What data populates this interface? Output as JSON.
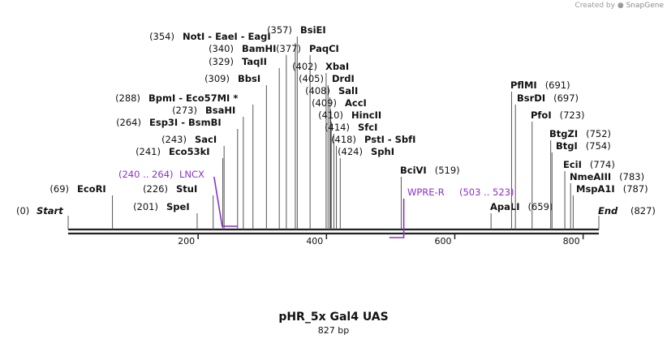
{
  "credit": {
    "prefix": "Created by",
    "brand": "SnapGene"
  },
  "map_title": "pHR_5x Gal4 UAS",
  "map_length": "827 bp",
  "sequence_length": 827,
  "axis_ticks": [
    200,
    400,
    600,
    800
  ],
  "ends": [
    {
      "name": "Start",
      "position_label": "(0)",
      "position": 0
    },
    {
      "name": "End",
      "position_label": "(827)",
      "position": 827
    }
  ],
  "sites": [
    {
      "name": "EcoRI",
      "position_label": "(69)",
      "position": 69
    },
    {
      "name": "SpeI",
      "position_label": "(201)",
      "position": 201
    },
    {
      "name": "StuI",
      "position_label": "(226)",
      "position": 226
    },
    {
      "name": "Eco53kI",
      "position_label": "(241)",
      "position": 241
    },
    {
      "name": "SacI",
      "position_label": "(243)",
      "position": 243
    },
    {
      "name": "Esp3I - BsmBI",
      "position_label": "(264)",
      "position": 264
    },
    {
      "name": "BsaHI",
      "position_label": "(273)",
      "position": 273
    },
    {
      "name": "BpmI - Eco57MI *",
      "position_label": "(288)",
      "position": 288
    },
    {
      "name": "BbsI",
      "position_label": "(309)",
      "position": 309
    },
    {
      "name": "TaqII",
      "position_label": "(329)",
      "position": 329
    },
    {
      "name": "BamHI",
      "position_label": "(340)",
      "position": 340
    },
    {
      "name": "NotI - EaeI - EagI",
      "position_label": "(354)",
      "position": 354
    },
    {
      "name": "BsiEI",
      "position_label": "(357)",
      "position": 357
    },
    {
      "name": "PaqCI",
      "position_label": "(377)",
      "position": 377
    },
    {
      "name": "XbaI",
      "position_label": "(402)",
      "position": 402
    },
    {
      "name": "DrdI",
      "position_label": "(405)",
      "position": 405
    },
    {
      "name": "SalI",
      "position_label": "(408)",
      "position": 408
    },
    {
      "name": "AccI",
      "position_label": "(409)",
      "position": 409
    },
    {
      "name": "HincII",
      "position_label": "(410)",
      "position": 410
    },
    {
      "name": "SfcI",
      "position_label": "(414)",
      "position": 414
    },
    {
      "name": "PstI - SbfI",
      "position_label": "(418)",
      "position": 418
    },
    {
      "name": "SphI",
      "position_label": "(424)",
      "position": 424
    },
    {
      "name": "BciVI",
      "position_label": "(519)",
      "position": 519
    },
    {
      "name": "ApaLI",
      "position_label": "(659)",
      "position": 659
    },
    {
      "name": "PflMI",
      "position_label": "(691)",
      "position": 691
    },
    {
      "name": "BsrDI",
      "position_label": "(697)",
      "position": 697
    },
    {
      "name": "PfoI",
      "position_label": "(723)",
      "position": 723
    },
    {
      "name": "BtgZI",
      "position_label": "(752)",
      "position": 752
    },
    {
      "name": "BtgI",
      "position_label": "(754)",
      "position": 754
    },
    {
      "name": "EciI",
      "position_label": "(774)",
      "position": 774
    },
    {
      "name": "NmeAIII",
      "position_label": "(783)",
      "position": 783
    },
    {
      "name": "MspA1I",
      "position_label": "(787)",
      "position": 787
    }
  ],
  "primers": [
    {
      "name": "LNCX",
      "range_label": "(240 .. 264)",
      "start": 240,
      "end": 264,
      "strand": "top"
    },
    {
      "name": "WPRE-R",
      "range_label": "(503 .. 523)",
      "start": 503,
      "end": 523,
      "strand": "bottom"
    }
  ],
  "colors": {
    "site_text": "#111111",
    "primer": "#8e2fc9",
    "line": "#222222"
  }
}
